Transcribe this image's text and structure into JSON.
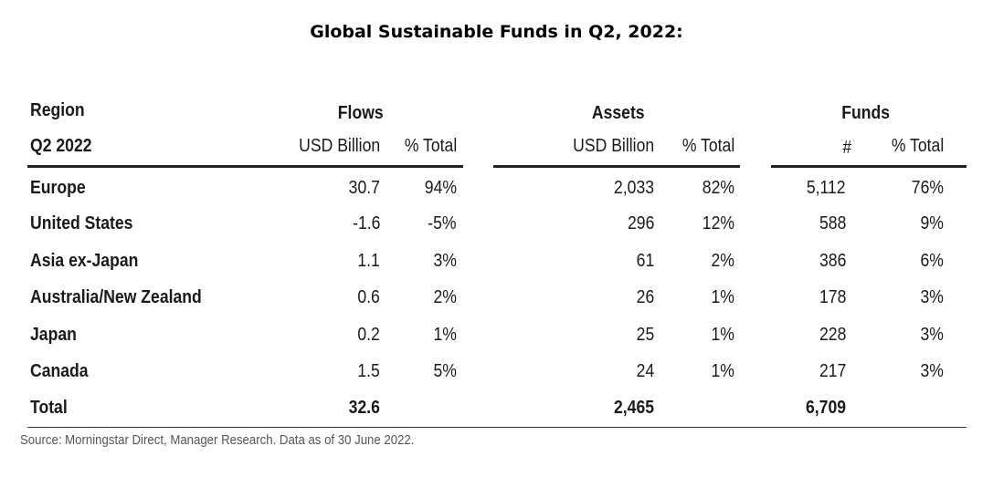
{
  "title": "Global Sustainable Funds in Q2, 2022:",
  "source": "Source: Morningstar Direct, Manager Research. Data as of 30 June 2022.",
  "chart_data": {
    "type": "table",
    "title": "Global Sustainable Funds in Q2, 2022:",
    "row_header": "Region",
    "row_subheader": "Q2 2022",
    "groups": [
      {
        "name": "Flows",
        "columns": [
          "USD Billion",
          "% Total"
        ]
      },
      {
        "name": "Assets",
        "columns": [
          "USD Billion",
          "% Total"
        ]
      },
      {
        "name": "Funds",
        "columns": [
          "#",
          "% Total"
        ]
      }
    ],
    "rows": [
      {
        "region": "Europe",
        "flows_usd": "30.7",
        "flows_pct": "94%",
        "assets_usd": "2,033",
        "assets_pct": "82%",
        "funds_n": "5,112",
        "funds_pct": "76%"
      },
      {
        "region": "United States",
        "flows_usd": "-1.6",
        "flows_pct": "-5%",
        "assets_usd": "296",
        "assets_pct": "12%",
        "funds_n": "588",
        "funds_pct": "9%"
      },
      {
        "region": "Asia ex-Japan",
        "flows_usd": "1.1",
        "flows_pct": "3%",
        "assets_usd": "61",
        "assets_pct": "2%",
        "funds_n": "386",
        "funds_pct": "6%"
      },
      {
        "region": "Australia/New Zealand",
        "flows_usd": "0.6",
        "flows_pct": "2%",
        "assets_usd": "26",
        "assets_pct": "1%",
        "funds_n": "178",
        "funds_pct": "3%"
      },
      {
        "region": "Japan",
        "flows_usd": "0.2",
        "flows_pct": "1%",
        "assets_usd": "25",
        "assets_pct": "1%",
        "funds_n": "228",
        "funds_pct": "3%"
      },
      {
        "region": "Canada",
        "flows_usd": "1.5",
        "flows_pct": "5%",
        "assets_usd": "24",
        "assets_pct": "1%",
        "funds_n": "217",
        "funds_pct": "3%"
      }
    ],
    "total": {
      "region": "Total",
      "flows_usd": "32.6",
      "assets_usd": "2,465",
      "funds_n": "6,709"
    }
  }
}
